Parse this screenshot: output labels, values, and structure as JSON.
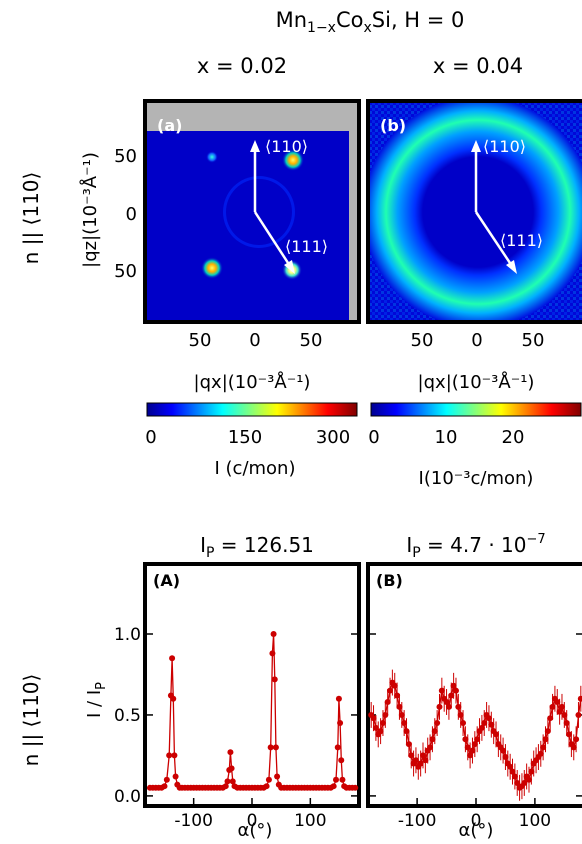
{
  "header": {
    "title_main": "Mn",
    "title_sub": "1−x",
    "title_rest": "Co",
    "title_sub2": "x",
    "title_end": "Si, H = 0",
    "col_a": "x = 0.02",
    "col_b": "x = 0.04"
  },
  "row_labels": {
    "top": "n || ⟨110⟩",
    "bottom": "n || ⟨110⟩"
  },
  "maps": {
    "panel_a": {
      "label": "(a)",
      "arrow1": "⟨110⟩",
      "arrow2": "⟨111⟩"
    },
    "panel_b": {
      "label": "(b)",
      "arrow1": "⟨110⟩",
      "arrow2": "⟨111⟩"
    },
    "ylabel": "|qz|(10⁻³Å⁻¹)",
    "xlabel_a": "|qx|(10⁻³Å⁻¹)",
    "xlabel_b": "|qx|(10⁻³Å⁻¹)",
    "ytick_labels": [
      "50",
      "0",
      "50"
    ],
    "xtick_labels": [
      "50",
      "0",
      "50"
    ]
  },
  "colorbars": {
    "a": {
      "ticks": [
        "0",
        "150",
        "300"
      ],
      "label": "I (c/mon)"
    },
    "b": {
      "ticks": [
        "0",
        "10",
        "20"
      ],
      "label": "I(10⁻³c/mon)"
    }
  },
  "colors": {
    "accent": "#cc0000",
    "map_bg": "#0000c8",
    "frame": "#000000"
  },
  "chart_data": [
    {
      "type": "scatter",
      "panel": "(A)",
      "subtitle": "I_P = 126.51",
      "subtitle_main": "I",
      "subtitle_sub": "P",
      "subtitle_rest": " = 126.51",
      "xlabel": "α(°)",
      "ylabel": "I / I_P",
      "ylabel_main": "I / I",
      "ylabel_sub": "P",
      "xlim": [
        -180,
        180
      ],
      "ylim": [
        -0.05,
        1.42
      ],
      "xticks": [
        -100,
        0,
        100
      ],
      "yticks": [
        0.0,
        0.5,
        1.0
      ],
      "ytick_labels": [
        "0.0",
        "0.5",
        "1.0"
      ],
      "xtick_labels": [
        "-100",
        "0",
        "100"
      ],
      "x": [
        -175,
        -170,
        -165,
        -160,
        -155,
        -150,
        -146,
        -142,
        -139,
        -137,
        -135,
        -133,
        -131,
        -128,
        -124,
        -120,
        -115,
        -110,
        -105,
        -100,
        -95,
        -90,
        -85,
        -80,
        -75,
        -70,
        -65,
        -60,
        -55,
        -50,
        -45,
        -42,
        -39,
        -37,
        -35,
        -33,
        -30,
        -25,
        -20,
        -15,
        -10,
        -5,
        0,
        5,
        10,
        15,
        20,
        25,
        29,
        32,
        35,
        37,
        39,
        41,
        43,
        46,
        50,
        55,
        60,
        65,
        70,
        75,
        80,
        85,
        90,
        95,
        100,
        105,
        110,
        115,
        120,
        125,
        130,
        135,
        140,
        144,
        147,
        149,
        151,
        153,
        155,
        158,
        162,
        167,
        172,
        177
      ],
      "y": [
        0.05,
        0.05,
        0.05,
        0.05,
        0.05,
        0.06,
        0.1,
        0.25,
        0.62,
        0.85,
        0.6,
        0.25,
        0.12,
        0.07,
        0.05,
        0.05,
        0.05,
        0.05,
        0.05,
        0.05,
        0.05,
        0.05,
        0.05,
        0.05,
        0.05,
        0.05,
        0.05,
        0.05,
        0.05,
        0.05,
        0.06,
        0.09,
        0.16,
        0.27,
        0.17,
        0.09,
        0.06,
        0.05,
        0.05,
        0.05,
        0.05,
        0.05,
        0.05,
        0.05,
        0.05,
        0.05,
        0.05,
        0.06,
        0.1,
        0.3,
        0.88,
        1.0,
        0.72,
        0.3,
        0.12,
        0.07,
        0.05,
        0.05,
        0.05,
        0.05,
        0.05,
        0.05,
        0.05,
        0.05,
        0.05,
        0.05,
        0.05,
        0.05,
        0.05,
        0.05,
        0.05,
        0.05,
        0.05,
        0.05,
        0.06,
        0.1,
        0.3,
        0.6,
        0.45,
        0.22,
        0.1,
        0.06,
        0.05,
        0.05,
        0.05,
        0.05
      ],
      "err": 0.01
    },
    {
      "type": "scatter",
      "panel": "(B)",
      "subtitle": "I_P = 4.7 · 10^-7",
      "subtitle_main": "I",
      "subtitle_sub": "P",
      "subtitle_rest": " = 4.7 · 10",
      "subtitle_sup": "−7",
      "xlabel": "α(°)",
      "xlim": [
        -180,
        180
      ],
      "ylim": [
        -0.05,
        1.42
      ],
      "xticks": [
        -100,
        0,
        100
      ],
      "xtick_labels": [
        "-100",
        "0",
        "100"
      ],
      "x": [
        -178,
        -174,
        -170,
        -166,
        -162,
        -158,
        -154,
        -150,
        -146,
        -142,
        -138,
        -134,
        -130,
        -126,
        -122,
        -118,
        -114,
        -110,
        -106,
        -102,
        -98,
        -94,
        -90,
        -86,
        -82,
        -78,
        -74,
        -70,
        -66,
        -62,
        -58,
        -54,
        -50,
        -46,
        -42,
        -38,
        -34,
        -30,
        -26,
        -22,
        -18,
        -14,
        -10,
        -6,
        -2,
        2,
        6,
        10,
        14,
        18,
        22,
        26,
        30,
        34,
        38,
        42,
        46,
        50,
        54,
        58,
        62,
        66,
        70,
        74,
        78,
        82,
        86,
        90,
        94,
        98,
        102,
        106,
        110,
        114,
        118,
        122,
        126,
        130,
        134,
        138,
        142,
        146,
        150,
        154,
        158,
        162,
        166,
        170,
        174,
        178
      ],
      "y": [
        0.5,
        0.48,
        0.42,
        0.38,
        0.4,
        0.45,
        0.5,
        0.58,
        0.65,
        0.7,
        0.68,
        0.62,
        0.55,
        0.5,
        0.45,
        0.4,
        0.32,
        0.25,
        0.2,
        0.22,
        0.18,
        0.2,
        0.25,
        0.22,
        0.28,
        0.3,
        0.35,
        0.4,
        0.45,
        0.55,
        0.65,
        0.6,
        0.58,
        0.55,
        0.62,
        0.68,
        0.65,
        0.55,
        0.5,
        0.45,
        0.35,
        0.3,
        0.25,
        0.28,
        0.32,
        0.35,
        0.4,
        0.42,
        0.45,
        0.5,
        0.48,
        0.44,
        0.4,
        0.38,
        0.32,
        0.3,
        0.28,
        0.24,
        0.2,
        0.18,
        0.15,
        0.12,
        0.08,
        0.05,
        0.06,
        0.08,
        0.12,
        0.1,
        0.15,
        0.2,
        0.22,
        0.24,
        0.26,
        0.3,
        0.35,
        0.4,
        0.48,
        0.55,
        0.6,
        0.58,
        0.52,
        0.55,
        0.5,
        0.45,
        0.38,
        0.32,
        0.3,
        0.35,
        0.5,
        0.6
      ],
      "err": 0.08
    }
  ]
}
